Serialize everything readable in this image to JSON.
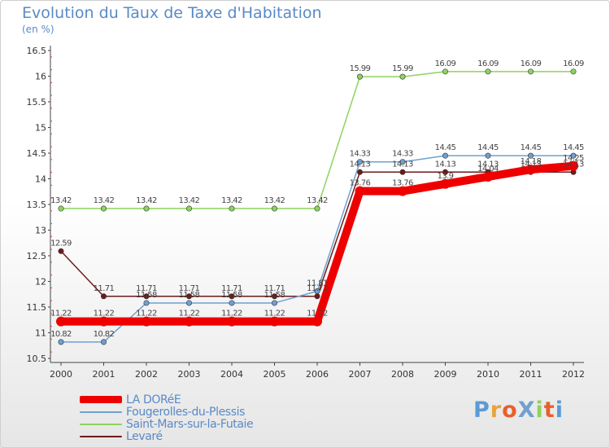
{
  "chart_data": {
    "type": "line",
    "title": "Evolution du Taux de Taxe d'Habitation",
    "unit": "(en %)",
    "x": [
      "2000",
      "2001",
      "2002",
      "2003",
      "2004",
      "2005",
      "2006",
      "2007",
      "2008",
      "2009",
      "2010",
      "2011",
      "2012"
    ],
    "ylim": [
      10.5,
      16.5
    ],
    "yticks": [
      "10.5",
      "11",
      "11.5",
      "12",
      "12.5",
      "13",
      "13.5",
      "14",
      "14.5",
      "15",
      "15.5",
      "16",
      "16.5"
    ],
    "grid": false,
    "legend_position": "bottom-left",
    "series": [
      {
        "name": "LA DORéE",
        "color": "#ee0000",
        "values": [
          11.22,
          11.22,
          11.22,
          11.22,
          11.22,
          11.22,
          11.22,
          13.76,
          13.76,
          13.9,
          14.04,
          14.18,
          14.25
        ],
        "labels": [
          "11.22",
          "11.22",
          "11.22",
          "11.22",
          "11.22",
          "11.22",
          "11.22",
          "13.76",
          "13.76",
          "13.9",
          "14.04",
          "14.18",
          "14.25"
        ]
      },
      {
        "name": "Fougerolles-du-Plessis",
        "color": "#6fa0d0",
        "values": [
          10.82,
          10.82,
          11.58,
          11.58,
          11.58,
          11.58,
          11.81,
          14.33,
          14.33,
          14.45,
          14.45,
          14.45,
          14.45
        ],
        "labels": [
          "10.82",
          "10.82",
          "11.58",
          "11.58",
          "11.58",
          "11.58",
          "11.81",
          "14.33",
          "14.33",
          "14.45",
          "14.45",
          "14.45",
          "14.45"
        ]
      },
      {
        "name": "Saint-Mars-sur-la-Futaie",
        "color": "#8dd35f",
        "values": [
          13.42,
          13.42,
          13.42,
          13.42,
          13.42,
          13.42,
          13.42,
          15.99,
          15.99,
          16.09,
          16.09,
          16.09,
          16.09
        ],
        "labels": [
          "13.42",
          "13.42",
          "13.42",
          "13.42",
          "13.42",
          "13.42",
          "13.42",
          "15.99",
          "15.99",
          "16.09",
          "16.09",
          "16.09",
          "16.09"
        ]
      },
      {
        "name": "Levaré",
        "color": "#6e1a1a",
        "values": [
          12.59,
          11.71,
          11.71,
          11.71,
          11.71,
          11.71,
          11.71,
          14.13,
          14.13,
          14.13,
          14.13,
          14.13,
          14.13
        ],
        "labels": [
          "12.59",
          "11.71",
          "11.71",
          "11.71",
          "11.71",
          "11.71",
          "11.71",
          "14.13",
          "14.13",
          "14.13",
          "14.13",
          "14.13",
          "14.13"
        ]
      }
    ]
  },
  "logo": {
    "text": "ProXiti",
    "colors": [
      "#5b9bd5",
      "#e8a33c",
      "#e8602c",
      "#6fa0d0",
      "#8dd35f",
      "#e8602c",
      "#5b9bd5"
    ]
  }
}
